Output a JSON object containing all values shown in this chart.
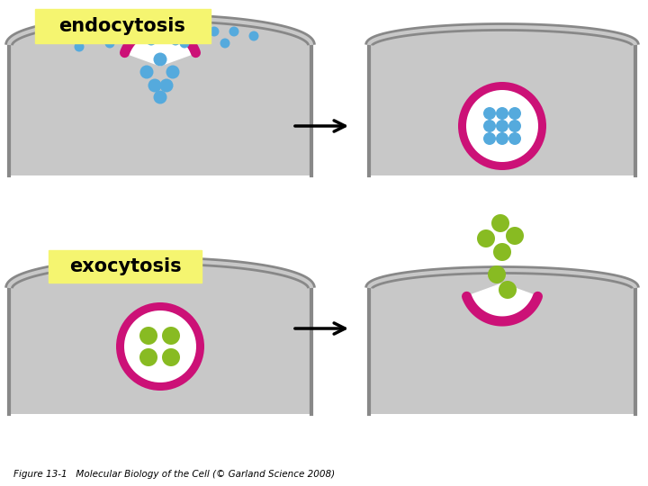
{
  "bg_color": "#ffffff",
  "cell_color": "#c8c8c8",
  "cell_border_color": "#888888",
  "membrane_magenta": "#cc1177",
  "green_dot_color": "#88bb22",
  "blue_dot_color": "#55aadd",
  "vesicle_white": "#ffffff",
  "label_box_color": "#f5f570",
  "exocytosis_label": "exocytosis",
  "endocytosis_label": "endocytosis",
  "caption": "Figure 13-1   Molecular Biology of the Cell (© Garland Science 2008)"
}
